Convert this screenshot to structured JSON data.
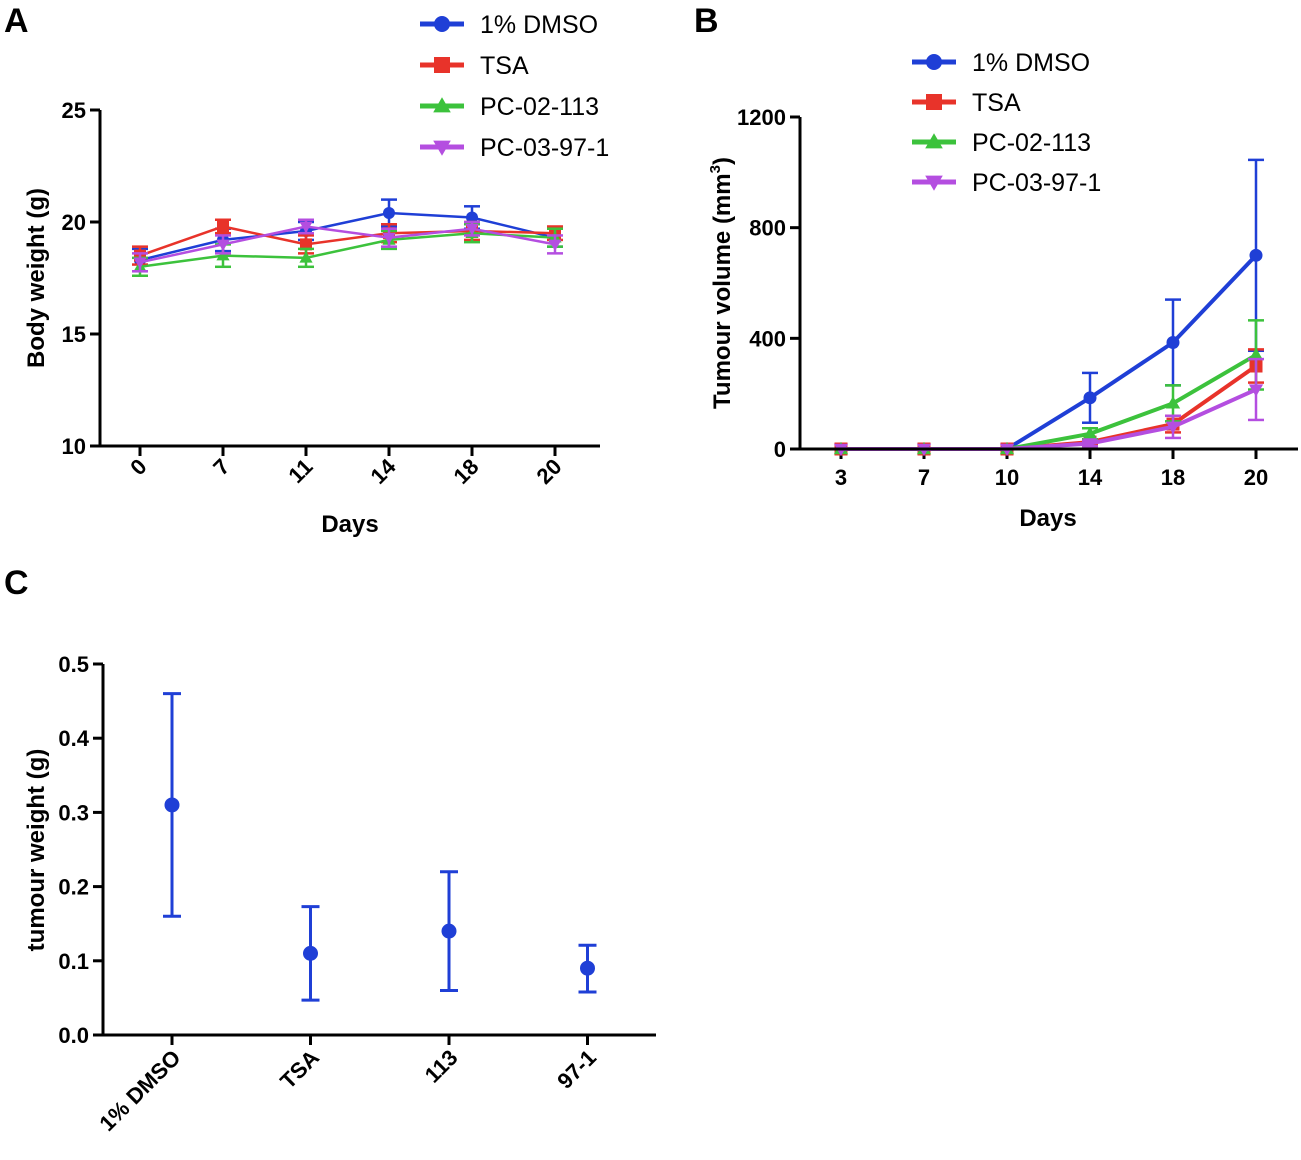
{
  "chart_data": [
    {
      "panel": "A",
      "type": "line",
      "title": "",
      "xlabel": "Days",
      "ylabel": "Body weight (g)",
      "categories": [
        "0",
        "7",
        "11",
        "14",
        "18",
        "20"
      ],
      "ylim": [
        10,
        25
      ],
      "yticks": [
        10,
        15,
        20,
        25
      ],
      "series": [
        {
          "name": "1% DMSO",
          "color": "#1f3fd6",
          "marker": "circle",
          "values": [
            18.3,
            19.2,
            19.6,
            20.4,
            20.2,
            19.3
          ],
          "errors": [
            0.5,
            0.5,
            0.4,
            0.6,
            0.5,
            0.4
          ]
        },
        {
          "name": "TSA",
          "color": "#e8332a",
          "marker": "square",
          "values": [
            18.5,
            19.8,
            19.0,
            19.5,
            19.6,
            19.5
          ],
          "errors": [
            0.4,
            0.3,
            0.4,
            0.4,
            0.4,
            0.3
          ]
        },
        {
          "name": "PC-02-113",
          "color": "#3cc23c",
          "marker": "triangle-up",
          "values": [
            18.0,
            18.5,
            18.4,
            19.2,
            19.5,
            19.3
          ],
          "errors": [
            0.4,
            0.5,
            0.4,
            0.4,
            0.4,
            0.4
          ]
        },
        {
          "name": "PC-03-97-1",
          "color": "#b44ee0",
          "marker": "triangle-down",
          "values": [
            18.2,
            19.0,
            19.8,
            19.3,
            19.7,
            19.0
          ],
          "errors": [
            0.4,
            0.4,
            0.3,
            0.4,
            0.3,
            0.4
          ]
        }
      ]
    },
    {
      "panel": "B",
      "type": "line",
      "title": "",
      "xlabel": "Days",
      "ylabel": "Tumour volume (mm",
      "ylabel_sup": "3",
      "ylabel_close": ")",
      "categories": [
        "3",
        "7",
        "10",
        "14",
        "18",
        "20"
      ],
      "ylim": [
        0,
        1200
      ],
      "yticks": [
        0,
        400,
        800,
        1200
      ],
      "series": [
        {
          "name": "1% DMSO",
          "color": "#1f3fd6",
          "marker": "circle",
          "values": [
            0,
            0,
            0,
            185,
            385,
            700
          ],
          "errors": [
            0,
            0,
            0,
            90,
            155,
            345
          ]
        },
        {
          "name": "TSA",
          "color": "#e8332a",
          "marker": "square",
          "values": [
            0,
            0,
            0,
            25,
            90,
            300
          ],
          "errors": [
            0,
            0,
            0,
            10,
            30,
            60
          ]
        },
        {
          "name": "PC-02-113",
          "color": "#3cc23c",
          "marker": "triangle-up",
          "values": [
            0,
            0,
            0,
            55,
            165,
            340
          ],
          "errors": [
            0,
            0,
            0,
            20,
            65,
            125
          ]
        },
        {
          "name": "PC-03-97-1",
          "color": "#b44ee0",
          "marker": "triangle-down",
          "values": [
            0,
            0,
            0,
            20,
            80,
            215
          ],
          "errors": [
            0,
            0,
            0,
            10,
            40,
            110
          ]
        }
      ]
    },
    {
      "panel": "C",
      "type": "scatter",
      "title": "",
      "xlabel": "",
      "ylabel": "tumour weight (g)",
      "categories": [
        "1% DMSO",
        "TSA",
        "113",
        "97-1"
      ],
      "ylim": [
        0.0,
        0.5
      ],
      "yticks": [
        "0.0",
        "0.1",
        "0.2",
        "0.3",
        "0.4",
        "0.5"
      ],
      "color": "#1f3fd6",
      "values": [
        0.31,
        0.11,
        0.14,
        0.09
      ],
      "errors_low": [
        0.16,
        0.047,
        0.06,
        0.058
      ],
      "errors_high": [
        0.46,
        0.173,
        0.22,
        0.121
      ]
    }
  ]
}
